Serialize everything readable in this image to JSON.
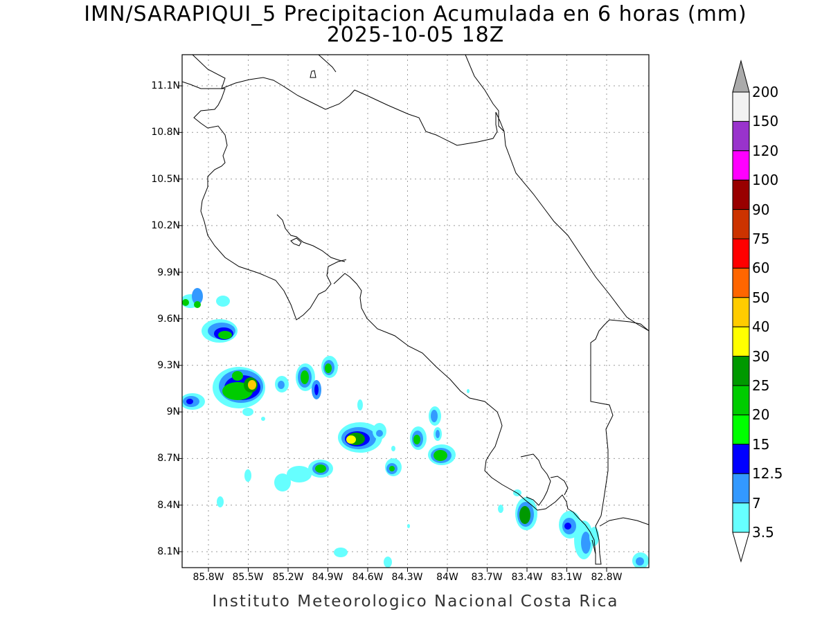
{
  "title": {
    "line1": "IMN/SARAPIQUI_5 Precipitacion Acumulada en 6 horas (mm)",
    "line2": "2025-10-05 18Z"
  },
  "footer": "Instituto Meteorologico Nacional Costa Rica",
  "map": {
    "lat_labels": [
      "11.1N",
      "10.8N",
      "10.5N",
      "10.2N",
      "9.9N",
      "9.6N",
      "9.3N",
      "9N",
      "8.7N",
      "8.4N",
      "8.1N"
    ],
    "lon_labels": [
      "85.8W",
      "85.5W",
      "85.2W",
      "84.9W",
      "84.6W",
      "84.3W",
      "84W",
      "83.7W",
      "83.4W",
      "83.1W",
      "82.8W"
    ],
    "grid": "dotted"
  },
  "colorbar": {
    "labels": [
      "200",
      "150",
      "120",
      "100",
      "90",
      "75",
      "60",
      "50",
      "40",
      "30",
      "25",
      "20",
      "15",
      "12.5",
      "7",
      "3.5"
    ],
    "colors": [
      "#f2f2f2",
      "#9933cc",
      "#ff00ff",
      "#990000",
      "#cc3300",
      "#ff0000",
      "#ff6600",
      "#ffcc00",
      "#ffff00",
      "#009900",
      "#00cc00",
      "#00ff00",
      "#0000ff",
      "#3399ff",
      "#66ffff"
    ],
    "top_arrow_color": "#aaaaaa",
    "bottom_arrow_color": "#ffffff"
  }
}
